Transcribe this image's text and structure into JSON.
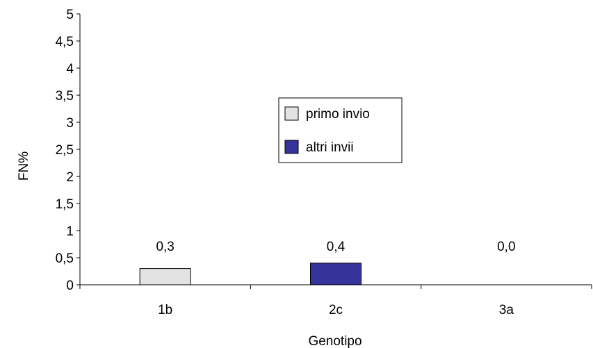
{
  "chart_data": {
    "type": "bar",
    "title": "",
    "xlabel": "Genotipo",
    "ylabel": "FN%",
    "categories": [
      "1b",
      "2c",
      "3a"
    ],
    "ylim": [
      0,
      5
    ],
    "yticks": [
      0,
      0.5,
      1,
      1.5,
      2,
      2.5,
      3,
      3.5,
      4,
      4.5,
      5
    ],
    "ytick_labels": [
      "0",
      "0,5",
      "1",
      "1,5",
      "2",
      "2,5",
      "3",
      "3,5",
      "4",
      "4,5",
      "5"
    ],
    "grid": false,
    "legend_position": "center",
    "series": [
      {
        "name": "primo invio",
        "color": "#e3e3e3",
        "values": [
          0.3,
          null,
          null
        ]
      },
      {
        "name": "altri invii",
        "color": "#333399",
        "values": [
          null,
          0.4,
          null
        ]
      }
    ],
    "data_labels": [
      "0,3",
      "0,4",
      "0,0"
    ]
  }
}
